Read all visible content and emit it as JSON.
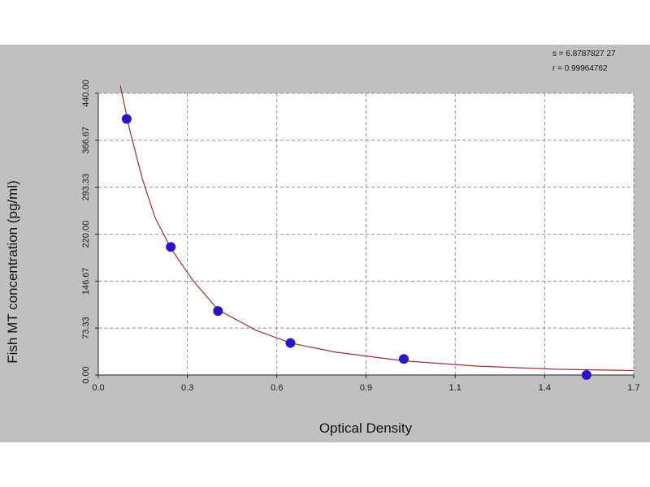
{
  "chart_data": {
    "type": "scatter",
    "title": "",
    "xlabel": "Optical Density",
    "ylabel": "Fish MT concentration (pg/ml)",
    "xlim": [
      0.0,
      1.7
    ],
    "ylim": [
      0.0,
      440.0
    ],
    "x_ticks": [
      {
        "value": 0.0,
        "label": "0.0"
      },
      {
        "value": 0.283,
        "label": "0.3"
      },
      {
        "value": 0.567,
        "label": "0.6"
      },
      {
        "value": 0.85,
        "label": "0.9"
      },
      {
        "value": 1.133,
        "label": "1.1"
      },
      {
        "value": 1.417,
        "label": "1.4"
      },
      {
        "value": 1.7,
        "label": "1.7"
      }
    ],
    "y_ticks": [
      {
        "value": 0.0,
        "label": "0.00"
      },
      {
        "value": 73.33,
        "label": "73.33"
      },
      {
        "value": 146.67,
        "label": "146.67"
      },
      {
        "value": 220.0,
        "label": "220.00"
      },
      {
        "value": 293.33,
        "label": "293.33"
      },
      {
        "value": 366.67,
        "label": "366.67"
      },
      {
        "value": 440.0,
        "label": "440.00"
      }
    ],
    "grid": true,
    "series": [
      {
        "points": [
          {
            "x": 0.09,
            "y": 400.0
          },
          {
            "x": 0.23,
            "y": 200.0
          },
          {
            "x": 0.38,
            "y": 100.0
          },
          {
            "x": 0.61,
            "y": 50.0
          },
          {
            "x": 0.97,
            "y": 25.0
          },
          {
            "x": 1.55,
            "y": 0.0
          }
        ]
      }
    ],
    "fit_curve": {
      "x": [
        0.07,
        0.1,
        0.14,
        0.18,
        0.23,
        0.3,
        0.38,
        0.5,
        0.61,
        0.75,
        0.97,
        1.2,
        1.45,
        1.7
      ],
      "y": [
        452,
        382,
        306,
        246,
        198,
        148,
        102,
        70,
        50,
        36,
        22,
        14,
        9,
        7
      ]
    },
    "colors": {
      "background": "#c0c0c0",
      "plot_area": "#ffffff",
      "curve": "#a03030",
      "point": "#2a16c8",
      "grid": "#7a7a7a"
    },
    "annotations": {
      "s": "s = 6.8787827 27",
      "r": "r = 0.99964762"
    }
  }
}
